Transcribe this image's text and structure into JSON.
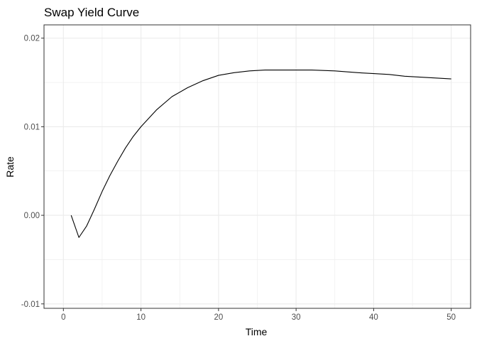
{
  "chart_data": {
    "type": "line",
    "title": "Swap Yield Curve",
    "xlabel": "Time",
    "ylabel": "Rate",
    "xlim": [
      -2.5,
      52.5
    ],
    "ylim": [
      -0.0105,
      0.0215
    ],
    "x_ticks": [
      0,
      10,
      20,
      30,
      40,
      50
    ],
    "x_tick_labels": [
      "0",
      "10",
      "20",
      "30",
      "40",
      "50"
    ],
    "y_ticks": [
      -0.01,
      0.0,
      0.01,
      0.02
    ],
    "y_tick_labels": [
      "-0.01",
      "0.00",
      "0.01",
      "0.02"
    ],
    "grid": true,
    "colors": {
      "line": "#000000",
      "grid": "#ebebeb",
      "border": "#333333"
    },
    "series": [
      {
        "x": [
          1,
          2,
          3,
          4,
          5,
          6,
          7,
          8,
          9,
          10,
          12,
          14,
          16,
          18,
          20,
          22,
          24,
          26,
          28,
          30,
          32,
          35,
          38,
          40,
          42,
          44,
          46,
          48,
          50
        ],
        "values": [
          0.0,
          -0.0025,
          -0.0012,
          0.0007,
          0.0027,
          0.0045,
          0.0061,
          0.0076,
          0.0089,
          0.01,
          0.0119,
          0.0134,
          0.0144,
          0.0152,
          0.0158,
          0.0161,
          0.0163,
          0.0164,
          0.0164,
          0.0164,
          0.0164,
          0.0163,
          0.0161,
          0.016,
          0.0159,
          0.0157,
          0.0156,
          0.0155,
          0.0154
        ]
      }
    ]
  }
}
